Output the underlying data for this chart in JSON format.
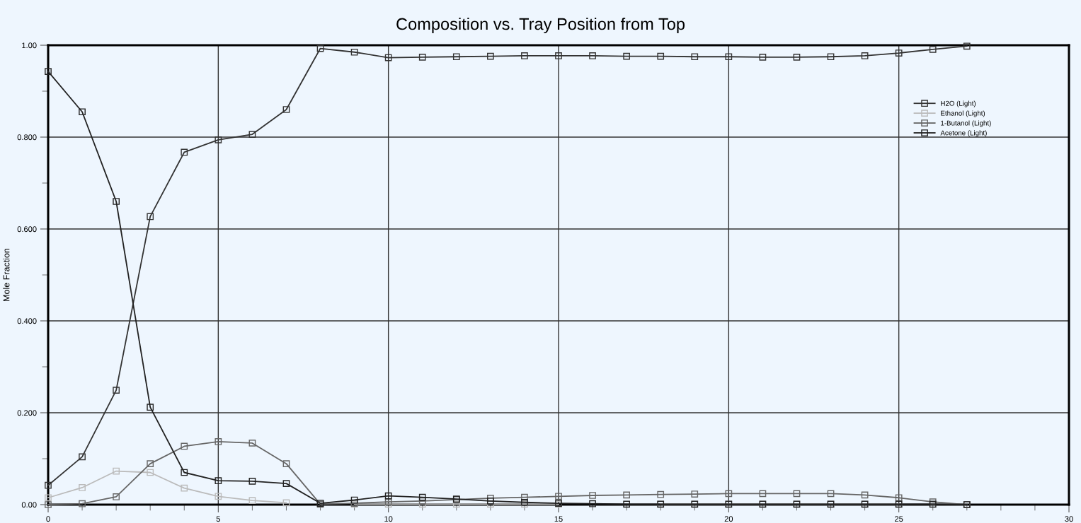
{
  "chart_data": {
    "type": "line",
    "title": "Composition vs. Tray Position from Top",
    "ylabel": "Mole Fraction",
    "x": [
      0,
      1,
      2,
      3,
      4,
      5,
      6,
      7,
      8,
      9,
      10,
      11,
      12,
      13,
      14,
      15,
      16,
      17,
      18,
      19,
      20,
      21,
      22,
      23,
      24,
      25,
      26,
      27
    ],
    "series": [
      {
        "name": "H2O (Light)",
        "color": "#333333",
        "values": [
          0.042,
          0.104,
          0.249,
          0.627,
          0.767,
          0.794,
          0.806,
          0.86,
          0.993,
          0.985,
          0.973,
          0.974,
          0.975,
          0.976,
          0.977,
          0.977,
          0.977,
          0.976,
          0.976,
          0.975,
          0.975,
          0.974,
          0.974,
          0.975,
          0.977,
          0.983,
          0.991,
          0.998
        ]
      },
      {
        "name": "Ethanol (Light)",
        "color": "#bbbbbb",
        "values": [
          0.015,
          0.037,
          0.073,
          0.07,
          0.036,
          0.018,
          0.009,
          0.004,
          null,
          0.001,
          0.001,
          0.001,
          0.001,
          0.001,
          0.001,
          0.001,
          null,
          null,
          0.001,
          0.001,
          0.001,
          0.001,
          0.001,
          0.001,
          0.001,
          0.001,
          null,
          0.0
        ]
      },
      {
        "name": "1-Butanol (Light)",
        "color": "#666666",
        "values": [
          0.0,
          0.002,
          0.017,
          0.089,
          0.127,
          0.137,
          0.134,
          0.089,
          0.001,
          0.003,
          0.006,
          0.008,
          0.011,
          0.014,
          0.016,
          0.018,
          0.02,
          0.021,
          0.022,
          0.023,
          0.024,
          0.024,
          0.024,
          0.024,
          0.021,
          0.015,
          0.006,
          0.0
        ]
      },
      {
        "name": "Acetone (Light)",
        "color": "#222222",
        "values": [
          0.943,
          0.855,
          0.66,
          0.212,
          0.07,
          0.052,
          0.051,
          0.046,
          0.003,
          0.01,
          0.019,
          0.016,
          0.012,
          0.008,
          0.005,
          0.003,
          0.002,
          0.001,
          0.001,
          0.001,
          0.001,
          0.001,
          0.001,
          0.001,
          0.001,
          0.001,
          0.001,
          0.0
        ]
      }
    ],
    "xlim": [
      0,
      30
    ],
    "xticks": [
      0,
      {
        "value": 1,
        "label": null
      },
      {
        "value": 2,
        "label": null
      },
      {
        "value": 3,
        "label": null
      },
      {
        "value": 4,
        "label": null
      },
      5,
      {
        "value": 6,
        "label": null
      },
      {
        "value": 7,
        "label": null
      },
      {
        "value": 8,
        "label": null
      },
      {
        "value": 9,
        "label": null
      },
      10,
      {
        "value": 11,
        "label": null
      },
      {
        "value": 12,
        "label": null
      },
      {
        "value": 13,
        "label": null
      },
      {
        "value": 14,
        "label": null
      },
      15,
      {
        "value": 16,
        "label": null
      },
      {
        "value": 17,
        "label": null
      },
      {
        "value": 18,
        "label": null
      },
      {
        "value": 19,
        "label": null
      },
      20,
      {
        "value": 21,
        "label": null
      },
      {
        "value": 22,
        "label": null
      },
      {
        "value": 23,
        "label": null
      },
      {
        "value": 24,
        "label": null
      },
      25,
      {
        "value": 26,
        "label": null
      },
      {
        "value": 27,
        "label": null
      },
      {
        "value": 28,
        "label": null
      },
      {
        "value": 29,
        "label": null
      },
      30
    ],
    "ylim": [
      0,
      1
    ],
    "yticks": [
      {
        "value": 0,
        "label": "0.00"
      },
      {
        "value": 0.1,
        "label": null
      },
      {
        "value": 0.2,
        "label": "0.200"
      },
      {
        "value": 0.3,
        "label": null
      },
      {
        "value": 0.4,
        "label": "0.400"
      },
      {
        "value": 0.5,
        "label": null
      },
      {
        "value": 0.6,
        "label": "0.600"
      },
      {
        "value": 0.7,
        "label": null
      },
      {
        "value": 0.8,
        "label": "0.800"
      },
      {
        "value": 0.9,
        "label": null
      },
      {
        "value": 1,
        "label": "1.00"
      }
    ],
    "grid": true,
    "legend": "right",
    "marker": "square",
    "line_style": "solid"
  }
}
